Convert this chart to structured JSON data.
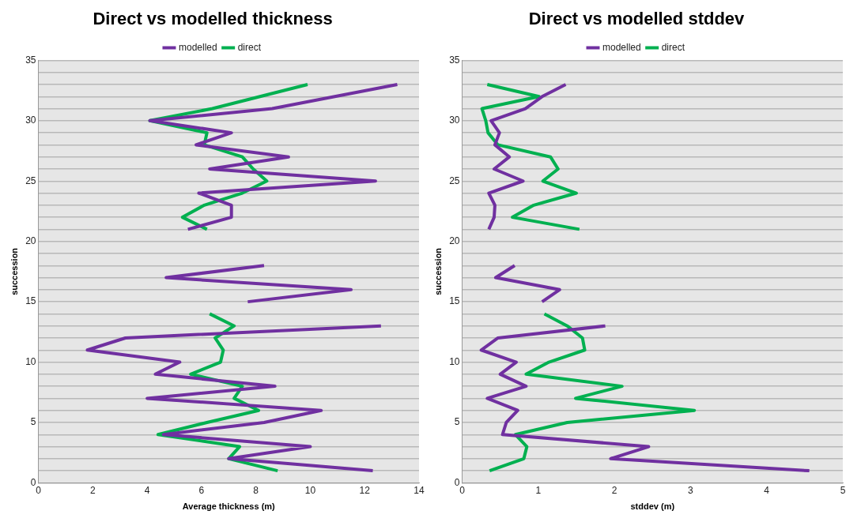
{
  "chart_data": [
    {
      "type": "line",
      "title": "Direct vs modelled thickness",
      "xlabel": "Average thickness (m)",
      "ylabel": "succession",
      "legend": "top",
      "marker": "none",
      "line_style": "solid",
      "grid": "y",
      "xlim": [
        0,
        14
      ],
      "xticks": [
        0,
        2,
        4,
        6,
        8,
        10,
        12,
        14
      ],
      "ylim": [
        0,
        35
      ],
      "yticks": [
        0,
        {
          "value": 1,
          "label": null
        },
        {
          "value": 2,
          "label": null
        },
        {
          "value": 3,
          "label": null
        },
        {
          "value": 4,
          "label": null
        },
        5,
        {
          "value": 6,
          "label": null
        },
        {
          "value": 7,
          "label": null
        },
        {
          "value": 8,
          "label": null
        },
        {
          "value": 9,
          "label": null
        },
        10,
        {
          "value": 11,
          "label": null
        },
        {
          "value": 12,
          "label": null
        },
        {
          "value": 13,
          "label": null
        },
        {
          "value": 14,
          "label": null
        },
        15,
        {
          "value": 16,
          "label": null
        },
        {
          "value": 17,
          "label": null
        },
        {
          "value": 18,
          "label": null
        },
        {
          "value": 19,
          "label": null
        },
        20,
        {
          "value": 21,
          "label": null
        },
        {
          "value": 22,
          "label": null
        },
        {
          "value": 23,
          "label": null
        },
        {
          "value": 24,
          "label": null
        },
        25,
        {
          "value": 26,
          "label": null
        },
        {
          "value": 27,
          "label": null
        },
        {
          "value": 28,
          "label": null
        },
        {
          "value": 29,
          "label": null
        },
        30,
        {
          "value": 31,
          "label": null
        },
        {
          "value": 32,
          "label": null
        },
        {
          "value": 33,
          "label": null
        },
        {
          "value": 34,
          "label": null
        },
        35
      ],
      "series": [
        {
          "name": "modelled",
          "color": "#7030a0",
          "x": [
            12.3,
            7.0,
            10.0,
            4.6,
            8.3,
            10.4,
            4.0,
            8.7,
            4.3,
            5.2,
            1.8,
            3.2,
            12.6,
            null,
            7.7,
            11.5,
            4.7,
            8.3,
            null,
            5.5,
            7.1,
            7.1,
            5.9,
            12.4,
            6.3,
            9.2,
            5.8,
            7.1,
            4.1,
            8.6,
            13.2
          ],
          "values": [
            1,
            2,
            3,
            4,
            5,
            6,
            7,
            8,
            9,
            10,
            11,
            12,
            13,
            null,
            15,
            16,
            17,
            18,
            null,
            21,
            22,
            23,
            24,
            25,
            26,
            27,
            28,
            29,
            30,
            31,
            33
          ]
        },
        {
          "name": "direct",
          "color": "#00b050",
          "x": [
            8.8,
            7.0,
            7.4,
            4.4,
            6.2,
            8.1,
            7.2,
            7.5,
            5.6,
            6.7,
            6.8,
            6.5,
            7.2,
            6.3,
            null,
            6.2,
            5.3,
            6.1,
            7.5,
            8.4,
            7.9,
            7.5,
            6.1,
            6.2,
            4.1,
            6.4,
            9.9
          ],
          "values": [
            1,
            2,
            3,
            4,
            5,
            6,
            7,
            8,
            9,
            10,
            11,
            12,
            13,
            14,
            null,
            21,
            22,
            23,
            24,
            25,
            26,
            27,
            28,
            29,
            30,
            31,
            33
          ]
        }
      ]
    },
    {
      "type": "line",
      "title": "Direct vs modelled stddev",
      "xlabel": "stddev (m)",
      "ylabel": "succession",
      "legend": "top",
      "marker": "none",
      "line_style": "solid",
      "grid": "y",
      "xlim": [
        0,
        5
      ],
      "xticks": [
        0,
        1,
        2,
        3,
        4,
        5
      ],
      "ylim": [
        0,
        35
      ],
      "yticks": [
        0,
        {
          "value": 1,
          "label": null
        },
        {
          "value": 2,
          "label": null
        },
        {
          "value": 3,
          "label": null
        },
        {
          "value": 4,
          "label": null
        },
        5,
        {
          "value": 6,
          "label": null
        },
        {
          "value": 7,
          "label": null
        },
        {
          "value": 8,
          "label": null
        },
        {
          "value": 9,
          "label": null
        },
        10,
        {
          "value": 11,
          "label": null
        },
        {
          "value": 12,
          "label": null
        },
        {
          "value": 13,
          "label": null
        },
        {
          "value": 14,
          "label": null
        },
        15,
        {
          "value": 16,
          "label": null
        },
        {
          "value": 17,
          "label": null
        },
        {
          "value": 18,
          "label": null
        },
        {
          "value": 19,
          "label": null
        },
        20,
        {
          "value": 21,
          "label": null
        },
        {
          "value": 22,
          "label": null
        },
        {
          "value": 23,
          "label": null
        },
        {
          "value": 24,
          "label": null
        },
        25,
        {
          "value": 26,
          "label": null
        },
        {
          "value": 27,
          "label": null
        },
        {
          "value": 28,
          "label": null
        },
        {
          "value": 29,
          "label": null
        },
        30,
        {
          "value": 31,
          "label": null
        },
        {
          "value": 32,
          "label": null
        },
        {
          "value": 33,
          "label": null
        },
        {
          "value": 34,
          "label": null
        },
        35
      ],
      "series": [
        {
          "name": "modelled",
          "color": "#7030a0",
          "x": [
            4.56,
            1.95,
            2.45,
            0.53,
            0.58,
            0.73,
            0.33,
            0.84,
            0.5,
            0.71,
            0.25,
            0.47,
            1.88,
            null,
            1.05,
            1.28,
            0.44,
            0.69,
            null,
            0.35,
            0.42,
            0.43,
            0.35,
            0.8,
            0.42,
            0.62,
            0.43,
            0.49,
            0.38,
            0.83,
            1.05,
            1.36
          ],
          "values": [
            1,
            2,
            3,
            4,
            5,
            6,
            7,
            8,
            9,
            10,
            11,
            12,
            13,
            null,
            15,
            16,
            17,
            18,
            null,
            21,
            22,
            23,
            24,
            25,
            26,
            27,
            28,
            29,
            30,
            31,
            32,
            33
          ]
        },
        {
          "name": "direct",
          "color": "#00b050",
          "x": [
            0.36,
            0.81,
            0.85,
            0.7,
            1.38,
            3.05,
            1.49,
            2.1,
            0.84,
            1.14,
            1.61,
            1.58,
            1.38,
            1.08,
            null,
            1.54,
            0.66,
            0.94,
            1.5,
            1.06,
            1.26,
            1.16,
            0.47,
            0.34,
            0.31,
            0.26,
            1.01,
            0.33
          ],
          "values": [
            1,
            2,
            3,
            4,
            5,
            6,
            7,
            8,
            9,
            10,
            11,
            12,
            13,
            14,
            null,
            21,
            22,
            23,
            24,
            25,
            26,
            27,
            28,
            29,
            30,
            31,
            32,
            33
          ]
        }
      ]
    }
  ]
}
